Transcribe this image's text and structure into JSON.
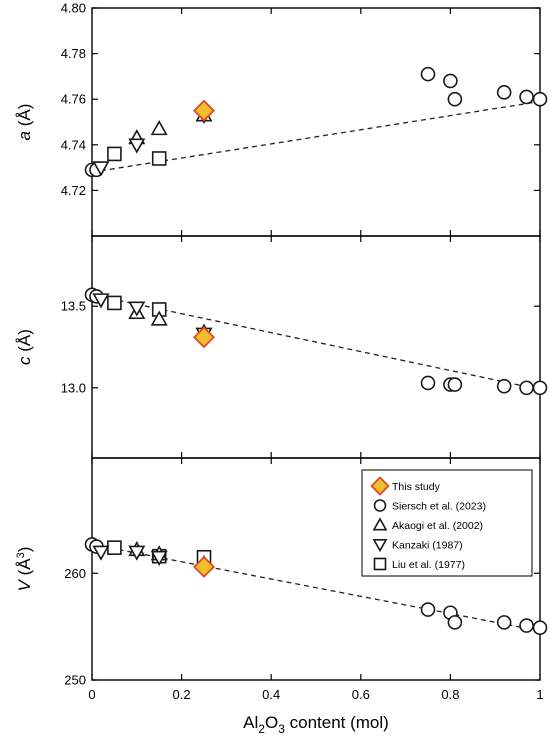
{
  "chart_data": [
    {
      "type": "scatter",
      "panel": "a",
      "ylabel_parts": {
        "italic": "a",
        "unit": " (Å)"
      },
      "ylim": [
        4.7,
        4.8
      ],
      "yticks": [
        4.72,
        4.74,
        4.76,
        4.78,
        4.8
      ],
      "ytick_labels": [
        "4.72",
        "4.74",
        "4.76",
        "4.78",
        "4.80"
      ],
      "series": [
        {
          "name": "This study",
          "marker": "diamond",
          "points": [
            [
              0.25,
              4.755
            ]
          ]
        },
        {
          "name": "Siersch et al. (2023)",
          "marker": "circle",
          "points": [
            [
              0.0,
              4.729
            ],
            [
              0.01,
              4.729
            ],
            [
              0.75,
              4.771
            ],
            [
              0.8,
              4.768
            ],
            [
              0.81,
              4.76
            ],
            [
              0.92,
              4.763
            ],
            [
              0.97,
              4.761
            ],
            [
              1.0,
              4.76
            ]
          ]
        },
        {
          "name": "Akaogi et al. (2002)",
          "marker": "triangle-up",
          "points": [
            [
              0.1,
              4.743
            ],
            [
              0.15,
              4.747
            ],
            [
              0.25,
              4.753
            ]
          ]
        },
        {
          "name": "Kanzaki (1987)",
          "marker": "triangle-down",
          "points": [
            [
              0.02,
              4.73
            ],
            [
              0.1,
              4.74
            ],
            [
              0.25,
              4.753
            ]
          ]
        },
        {
          "name": "Liu et al. (1977)",
          "marker": "square",
          "points": [
            [
              0.05,
              4.736
            ],
            [
              0.15,
              4.734
            ]
          ]
        }
      ],
      "trend": [
        [
          0.0,
          4.728
        ],
        [
          1.0,
          4.759
        ]
      ]
    },
    {
      "type": "scatter",
      "panel": "c",
      "ylabel_parts": {
        "italic": "c",
        "unit": " (Å)"
      },
      "ylim": [
        12.57,
        13.93
      ],
      "yticks": [
        13.0,
        13.5
      ],
      "ytick_labels": [
        "13.0",
        "13.5"
      ],
      "series": [
        {
          "name": "This study",
          "marker": "diamond",
          "points": [
            [
              0.25,
              13.31
            ]
          ]
        },
        {
          "name": "Siersch et al. (2023)",
          "marker": "circle",
          "points": [
            [
              0.0,
              13.57
            ],
            [
              0.01,
              13.56
            ],
            [
              0.75,
              13.03
            ],
            [
              0.8,
              13.02
            ],
            [
              0.81,
              13.02
            ],
            [
              0.92,
              13.01
            ],
            [
              0.97,
              13.0
            ],
            [
              1.0,
              13.0
            ]
          ]
        },
        {
          "name": "Akaogi et al. (2002)",
          "marker": "triangle-up",
          "points": [
            [
              0.1,
              13.46
            ],
            [
              0.15,
              13.42
            ],
            [
              0.25,
              13.34
            ]
          ]
        },
        {
          "name": "Kanzaki (1987)",
          "marker": "triangle-down",
          "points": [
            [
              0.02,
              13.54
            ],
            [
              0.1,
              13.49
            ],
            [
              0.25,
              13.33
            ]
          ]
        },
        {
          "name": "Liu et al. (1977)",
          "marker": "square",
          "points": [
            [
              0.05,
              13.52
            ],
            [
              0.15,
              13.48
            ]
          ]
        }
      ],
      "trend": [
        [
          0.0,
          13.57
        ],
        [
          1.0,
          12.99
        ]
      ]
    },
    {
      "type": "scatter",
      "panel": "V",
      "ylabel_parts": {
        "italic": "V",
        "unit": " (Å",
        "sup": "3",
        "close": ")"
      },
      "ylim": [
        250.0,
        270.8
      ],
      "yticks": [
        250,
        260
      ],
      "ytick_labels": [
        "250",
        "260"
      ],
      "xlim": [
        0,
        1
      ],
      "xticks": [
        0,
        0.2,
        0.4,
        0.6,
        0.8,
        1
      ],
      "xtick_labels": [
        "0",
        "0.2",
        "0.4",
        "0.6",
        "0.8",
        "1"
      ],
      "xlabel_parts": {
        "a": "Al",
        "s1": "2",
        "b": "O",
        "s2": "3",
        "c": " content (mol)"
      },
      "series": [
        {
          "name": "This study",
          "marker": "diamond",
          "points": [
            [
              0.25,
              260.6
            ]
          ]
        },
        {
          "name": "Siersch et al. (2023)",
          "marker": "circle",
          "points": [
            [
              0.0,
              262.7
            ],
            [
              0.01,
              262.5
            ],
            [
              0.75,
              256.6
            ],
            [
              0.8,
              256.3
            ],
            [
              0.81,
              255.4
            ],
            [
              0.92,
              255.4
            ],
            [
              0.97,
              255.1
            ],
            [
              1.0,
              254.9
            ]
          ]
        },
        {
          "name": "Akaogi et al. (2002)",
          "marker": "triangle-up",
          "points": [
            [
              0.1,
              262.2
            ],
            [
              0.15,
              261.8
            ],
            [
              0.25,
              260.9
            ]
          ]
        },
        {
          "name": "Kanzaki (1987)",
          "marker": "triangle-down",
          "points": [
            [
              0.02,
              262.0
            ],
            [
              0.1,
              262.0
            ],
            [
              0.15,
              261.5
            ]
          ]
        },
        {
          "name": "Liu et al. (1977)",
          "marker": "square",
          "points": [
            [
              0.05,
              262.4
            ],
            [
              0.15,
              261.6
            ],
            [
              0.25,
              261.5
            ]
          ]
        }
      ],
      "trend": [
        [
          0.0,
          262.7
        ],
        [
          1.0,
          254.6
        ]
      ]
    }
  ],
  "legend": {
    "placement": "top-right of bottom panel",
    "entries": [
      {
        "label": "This study",
        "marker": "diamond"
      },
      {
        "label": "Siersch et al. (2023)",
        "marker": "circle"
      },
      {
        "label": "Akaogi et al. (2002)",
        "marker": "triangle-up"
      },
      {
        "label": "Kanzaki (1987)",
        "marker": "triangle-down"
      },
      {
        "label": "Liu et al. (1977)",
        "marker": "square"
      }
    ]
  },
  "style": {
    "this_study_fill": "#f0c02a",
    "this_study_stroke": "#e04a2a",
    "marker_stroke": "#1a1a1a",
    "trend_color": "#222222"
  }
}
